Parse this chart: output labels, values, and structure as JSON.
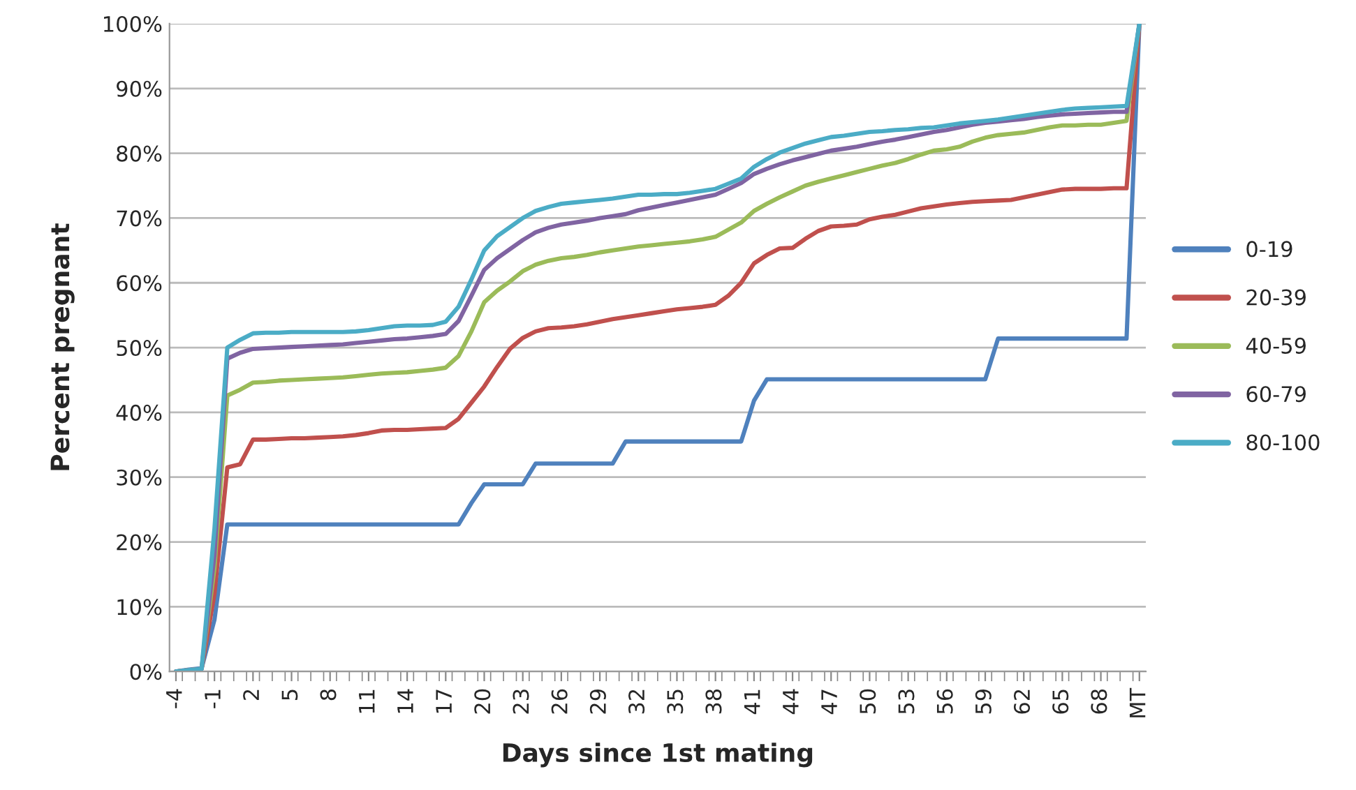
{
  "chart_data": {
    "type": "line",
    "xlabel": "Days since 1st mating",
    "ylabel": "Percent pregnant",
    "categories": [
      "-4",
      null,
      null,
      "-1",
      null,
      null,
      "2",
      null,
      null,
      "5",
      null,
      null,
      "8",
      null,
      null,
      "11",
      null,
      null,
      "14",
      null,
      null,
      "17",
      null,
      null,
      "20",
      null,
      null,
      "23",
      null,
      null,
      "26",
      null,
      null,
      "29",
      null,
      null,
      "32",
      null,
      null,
      "35",
      null,
      null,
      "38",
      null,
      null,
      "41",
      null,
      null,
      "44",
      null,
      null,
      "47",
      null,
      null,
      "50",
      null,
      null,
      "53",
      null,
      null,
      "56",
      null,
      null,
      "59",
      null,
      null,
      "62",
      null,
      null,
      "65",
      null,
      null,
      "68",
      null,
      null,
      "MT"
    ],
    "series": [
      {
        "name": "0-19",
        "color": "#4f81bd",
        "values": [
          0,
          0.3,
          0.5,
          8,
          22.7,
          22.7,
          22.7,
          22.7,
          22.7,
          22.7,
          22.7,
          22.7,
          22.7,
          22.7,
          22.7,
          22.7,
          22.7,
          22.7,
          22.7,
          22.7,
          22.7,
          22.7,
          22.7,
          26,
          28.9,
          28.9,
          28.9,
          28.9,
          32.1,
          32.1,
          32.1,
          32.1,
          32.1,
          32.1,
          32.1,
          35.5,
          35.5,
          35.5,
          35.5,
          35.5,
          35.5,
          35.5,
          35.5,
          35.5,
          35.5,
          41.8,
          45.1,
          45.1,
          45.1,
          45.1,
          45.1,
          45.1,
          45.1,
          45.1,
          45.1,
          45.1,
          45.1,
          45.1,
          45.1,
          45.1,
          45.1,
          45.1,
          45.1,
          45.1,
          51.4,
          51.4,
          51.4,
          51.4,
          51.4,
          51.4,
          51.4,
          51.4,
          51.4,
          51.4,
          51.4,
          100
        ]
      },
      {
        "name": "20-39",
        "color": "#c0504d",
        "values": [
          0,
          0.2,
          0.4,
          12,
          31.5,
          32,
          35.8,
          35.8,
          35.9,
          36,
          36,
          36.1,
          36.2,
          36.3,
          36.5,
          36.8,
          37.2,
          37.3,
          37.3,
          37.4,
          37.5,
          37.6,
          39,
          41.5,
          44,
          47,
          49.8,
          51.5,
          52.5,
          53,
          53.1,
          53.3,
          53.6,
          54,
          54.4,
          54.7,
          55,
          55.3,
          55.6,
          55.9,
          56.1,
          56.3,
          56.6,
          58,
          60,
          63,
          64.3,
          65.3,
          65.4,
          66.8,
          68,
          68.7,
          68.8,
          69,
          69.8,
          70.2,
          70.5,
          71,
          71.5,
          71.8,
          72.1,
          72.3,
          72.5,
          72.6,
          72.7,
          72.8,
          73.2,
          73.6,
          74,
          74.4,
          74.5,
          74.5,
          74.5,
          74.6,
          74.6,
          100
        ]
      },
      {
        "name": "40-59",
        "color": "#9bbb59",
        "values": [
          0,
          0.2,
          0.4,
          16,
          42.6,
          43.5,
          44.6,
          44.7,
          44.9,
          45,
          45.1,
          45.2,
          45.3,
          45.4,
          45.6,
          45.8,
          46,
          46.1,
          46.2,
          46.4,
          46.6,
          46.9,
          48.7,
          52.5,
          57,
          58.8,
          60.2,
          61.8,
          62.8,
          63.4,
          63.8,
          64,
          64.3,
          64.7,
          65,
          65.3,
          65.6,
          65.8,
          66,
          66.2,
          66.4,
          66.7,
          67.1,
          68.2,
          69.3,
          71.1,
          72.2,
          73.2,
          74.1,
          75,
          75.6,
          76.1,
          76.6,
          77.1,
          77.6,
          78.1,
          78.5,
          79.1,
          79.8,
          80.4,
          80.6,
          81,
          81.8,
          82.4,
          82.8,
          83,
          83.2,
          83.6,
          84,
          84.3,
          84.3,
          84.4,
          84.4,
          84.7,
          85,
          100
        ]
      },
      {
        "name": "60-79",
        "color": "#8064a2",
        "values": [
          0,
          0.2,
          0.4,
          18,
          48.3,
          49.2,
          49.8,
          49.9,
          50,
          50.1,
          50.2,
          50.3,
          50.4,
          50.5,
          50.7,
          50.9,
          51.1,
          51.3,
          51.4,
          51.6,
          51.8,
          52.1,
          54.1,
          58,
          62,
          63.8,
          65.2,
          66.6,
          67.8,
          68.5,
          69,
          69.3,
          69.6,
          70,
          70.3,
          70.6,
          71.2,
          71.6,
          72,
          72.4,
          72.8,
          73.2,
          73.6,
          74.5,
          75.4,
          76.8,
          77.6,
          78.3,
          78.9,
          79.4,
          79.9,
          80.4,
          80.7,
          81,
          81.4,
          81.8,
          82.1,
          82.5,
          82.9,
          83.3,
          83.6,
          84,
          84.4,
          84.7,
          84.9,
          85.1,
          85.3,
          85.6,
          85.8,
          86,
          86.1,
          86.2,
          86.3,
          86.4,
          86.4,
          100
        ]
      },
      {
        "name": "80-100",
        "color": "#4bacc6",
        "values": [
          0,
          0.2,
          0.4,
          22,
          50,
          51.2,
          52.2,
          52.3,
          52.3,
          52.4,
          52.4,
          52.4,
          52.4,
          52.4,
          52.5,
          52.7,
          53,
          53.3,
          53.4,
          53.4,
          53.5,
          54,
          56.3,
          60.5,
          65,
          67.2,
          68.6,
          70,
          71.1,
          71.7,
          72.2,
          72.4,
          72.6,
          72.8,
          73,
          73.3,
          73.6,
          73.6,
          73.7,
          73.7,
          73.9,
          74.2,
          74.5,
          75.3,
          76.1,
          77.9,
          79.1,
          80.1,
          80.8,
          81.5,
          82,
          82.5,
          82.7,
          83,
          83.3,
          83.4,
          83.6,
          83.7,
          83.9,
          84,
          84.3,
          84.6,
          84.8,
          85,
          85.2,
          85.5,
          85.8,
          86.1,
          86.4,
          86.7,
          86.9,
          87,
          87.1,
          87.2,
          87.3,
          100
        ]
      }
    ],
    "ylim": [
      0,
      100
    ],
    "yticks": [
      {
        "value": 0,
        "label": "0%"
      },
      {
        "value": 10,
        "label": "10%"
      },
      {
        "value": 20,
        "label": "20%"
      },
      {
        "value": 30,
        "label": "30%"
      },
      {
        "value": 40,
        "label": "40%"
      },
      {
        "value": 50,
        "label": "50%"
      },
      {
        "value": 60,
        "label": "60%"
      },
      {
        "value": 70,
        "label": "70%"
      },
      {
        "value": 80,
        "label": "80%"
      },
      {
        "value": 90,
        "label": "90%"
      },
      {
        "value": 100,
        "label": "100%"
      }
    ],
    "grid": "y",
    "legend": "right",
    "marker": "none",
    "line_style": "solid"
  }
}
